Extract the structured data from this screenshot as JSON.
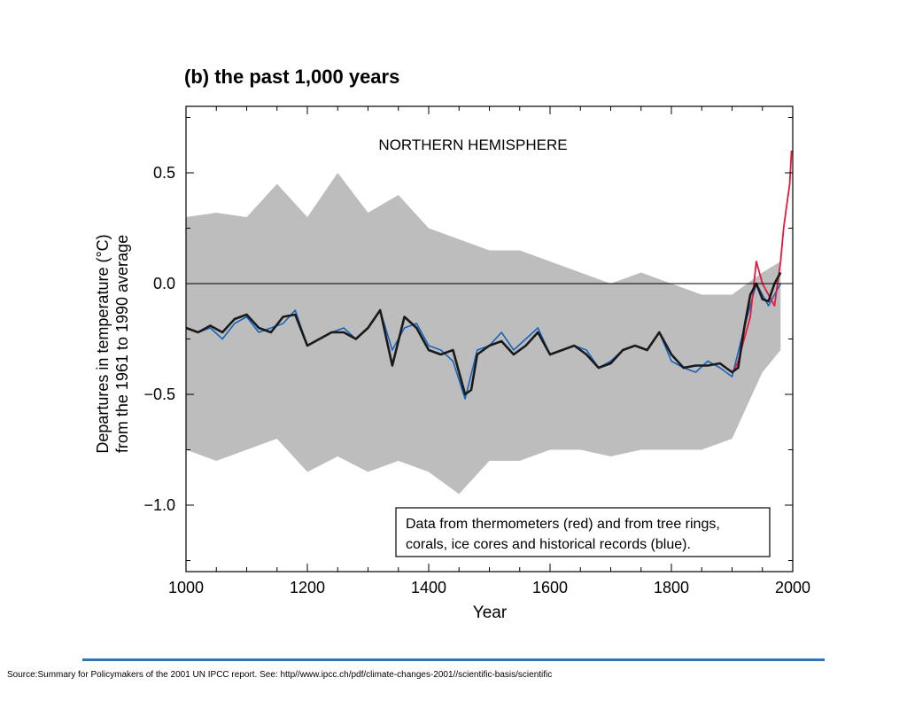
{
  "chart_data": {
    "type": "line",
    "title": "(b) the past 1,000 years",
    "subtitle": "NORTHERN HEMISPHERE",
    "xlabel": "Year",
    "ylabel_lines": [
      "Departures in temperature (°C)",
      "from the 1961 to 1990 average"
    ],
    "xlim": [
      1000,
      2000
    ],
    "ylim": [
      -1.3,
      0.8
    ],
    "xticks": [
      1000,
      1200,
      1400,
      1600,
      1800,
      2000
    ],
    "yticks": [
      0.5,
      0.0,
      -0.5,
      -1.0
    ],
    "ytick_labels": [
      "0.5",
      "0.0",
      "−0.5",
      "−1.0"
    ],
    "legend_lines": [
      "Data from thermometers (red) and from tree rings,",
      "corals, ice cores and historical records (blue)."
    ],
    "legend_position": "bottom-right",
    "zero_line": true,
    "colors": {
      "reconstruction": "#1565c0",
      "thermometer": "#e8173a",
      "smooth": "#1a1a1a",
      "uncertainty": "#bdbdbd"
    },
    "series": [
      {
        "name": "tree rings, corals, ice cores and historical records",
        "color": "#1565c0",
        "x": [
          1000,
          1020,
          1040,
          1060,
          1080,
          1100,
          1120,
          1140,
          1160,
          1180,
          1200,
          1220,
          1240,
          1260,
          1280,
          1300,
          1320,
          1340,
          1360,
          1380,
          1400,
          1420,
          1440,
          1460,
          1480,
          1500,
          1520,
          1540,
          1560,
          1580,
          1600,
          1620,
          1640,
          1660,
          1680,
          1700,
          1720,
          1740,
          1760,
          1780,
          1800,
          1820,
          1840,
          1860,
          1880,
          1900,
          1920,
          1940,
          1960,
          1980
        ],
        "values": [
          -0.2,
          -0.22,
          -0.2,
          -0.25,
          -0.18,
          -0.15,
          -0.22,
          -0.2,
          -0.18,
          -0.12,
          -0.28,
          -0.25,
          -0.22,
          -0.2,
          -0.25,
          -0.2,
          -0.12,
          -0.3,
          -0.2,
          -0.18,
          -0.28,
          -0.3,
          -0.35,
          -0.52,
          -0.3,
          -0.28,
          -0.22,
          -0.3,
          -0.25,
          -0.2,
          -0.32,
          -0.3,
          -0.28,
          -0.3,
          -0.38,
          -0.35,
          -0.3,
          -0.28,
          -0.3,
          -0.22,
          -0.35,
          -0.38,
          -0.4,
          -0.35,
          -0.38,
          -0.42,
          -0.2,
          0.0,
          -0.1,
          0.0
        ]
      },
      {
        "name": "thermometers",
        "color": "#e8173a",
        "x": [
          1902,
          1910,
          1920,
          1930,
          1940,
          1950,
          1960,
          1970,
          1980,
          1985,
          1990,
          1995,
          1998
        ],
        "values": [
          -0.4,
          -0.35,
          -0.25,
          -0.15,
          0.1,
          0.0,
          -0.05,
          -0.1,
          0.1,
          0.25,
          0.35,
          0.45,
          0.6
        ]
      },
      {
        "name": "smoothed",
        "color": "#1a1a1a",
        "x": [
          1000,
          1020,
          1040,
          1060,
          1080,
          1100,
          1120,
          1140,
          1160,
          1180,
          1200,
          1220,
          1240,
          1260,
          1280,
          1300,
          1320,
          1340,
          1360,
          1380,
          1400,
          1420,
          1440,
          1460,
          1470,
          1480,
          1500,
          1520,
          1540,
          1560,
          1580,
          1600,
          1620,
          1640,
          1660,
          1680,
          1700,
          1720,
          1740,
          1760,
          1780,
          1800,
          1820,
          1840,
          1860,
          1880,
          1900,
          1910,
          1920,
          1930,
          1940,
          1950,
          1960,
          1970,
          1980
        ],
        "values": [
          -0.2,
          -0.22,
          -0.19,
          -0.22,
          -0.16,
          -0.14,
          -0.2,
          -0.22,
          -0.15,
          -0.14,
          -0.28,
          -0.25,
          -0.22,
          -0.22,
          -0.25,
          -0.2,
          -0.12,
          -0.37,
          -0.15,
          -0.2,
          -0.3,
          -0.32,
          -0.3,
          -0.5,
          -0.48,
          -0.32,
          -0.28,
          -0.26,
          -0.32,
          -0.28,
          -0.22,
          -0.32,
          -0.3,
          -0.28,
          -0.32,
          -0.38,
          -0.36,
          -0.3,
          -0.28,
          -0.3,
          -0.22,
          -0.32,
          -0.38,
          -0.37,
          -0.37,
          -0.36,
          -0.4,
          -0.38,
          -0.2,
          -0.05,
          0.0,
          -0.07,
          -0.08,
          0.0,
          0.05
        ]
      }
    ],
    "uncertainty_band": {
      "x": [
        1000,
        1050,
        1100,
        1150,
        1200,
        1250,
        1300,
        1350,
        1400,
        1450,
        1500,
        1550,
        1600,
        1650,
        1700,
        1750,
        1800,
        1850,
        1900,
        1950,
        1980
      ],
      "upper": [
        0.3,
        0.32,
        0.3,
        0.45,
        0.3,
        0.5,
        0.32,
        0.4,
        0.25,
        0.2,
        0.15,
        0.15,
        0.1,
        0.05,
        0.0,
        0.05,
        0.0,
        -0.05,
        -0.05,
        0.05,
        0.1
      ],
      "lower": [
        -0.75,
        -0.8,
        -0.75,
        -0.7,
        -0.85,
        -0.78,
        -0.85,
        -0.8,
        -0.85,
        -0.95,
        -0.8,
        -0.8,
        -0.75,
        -0.75,
        -0.78,
        -0.75,
        -0.75,
        -0.75,
        -0.7,
        -0.4,
        -0.3
      ]
    }
  },
  "source": "Source:Summary for Policymakers of the  2001 UN IPCC report. See: http//www.ipcc.ch/pdf/climate-changes-2001//scientific-basis/scientific"
}
